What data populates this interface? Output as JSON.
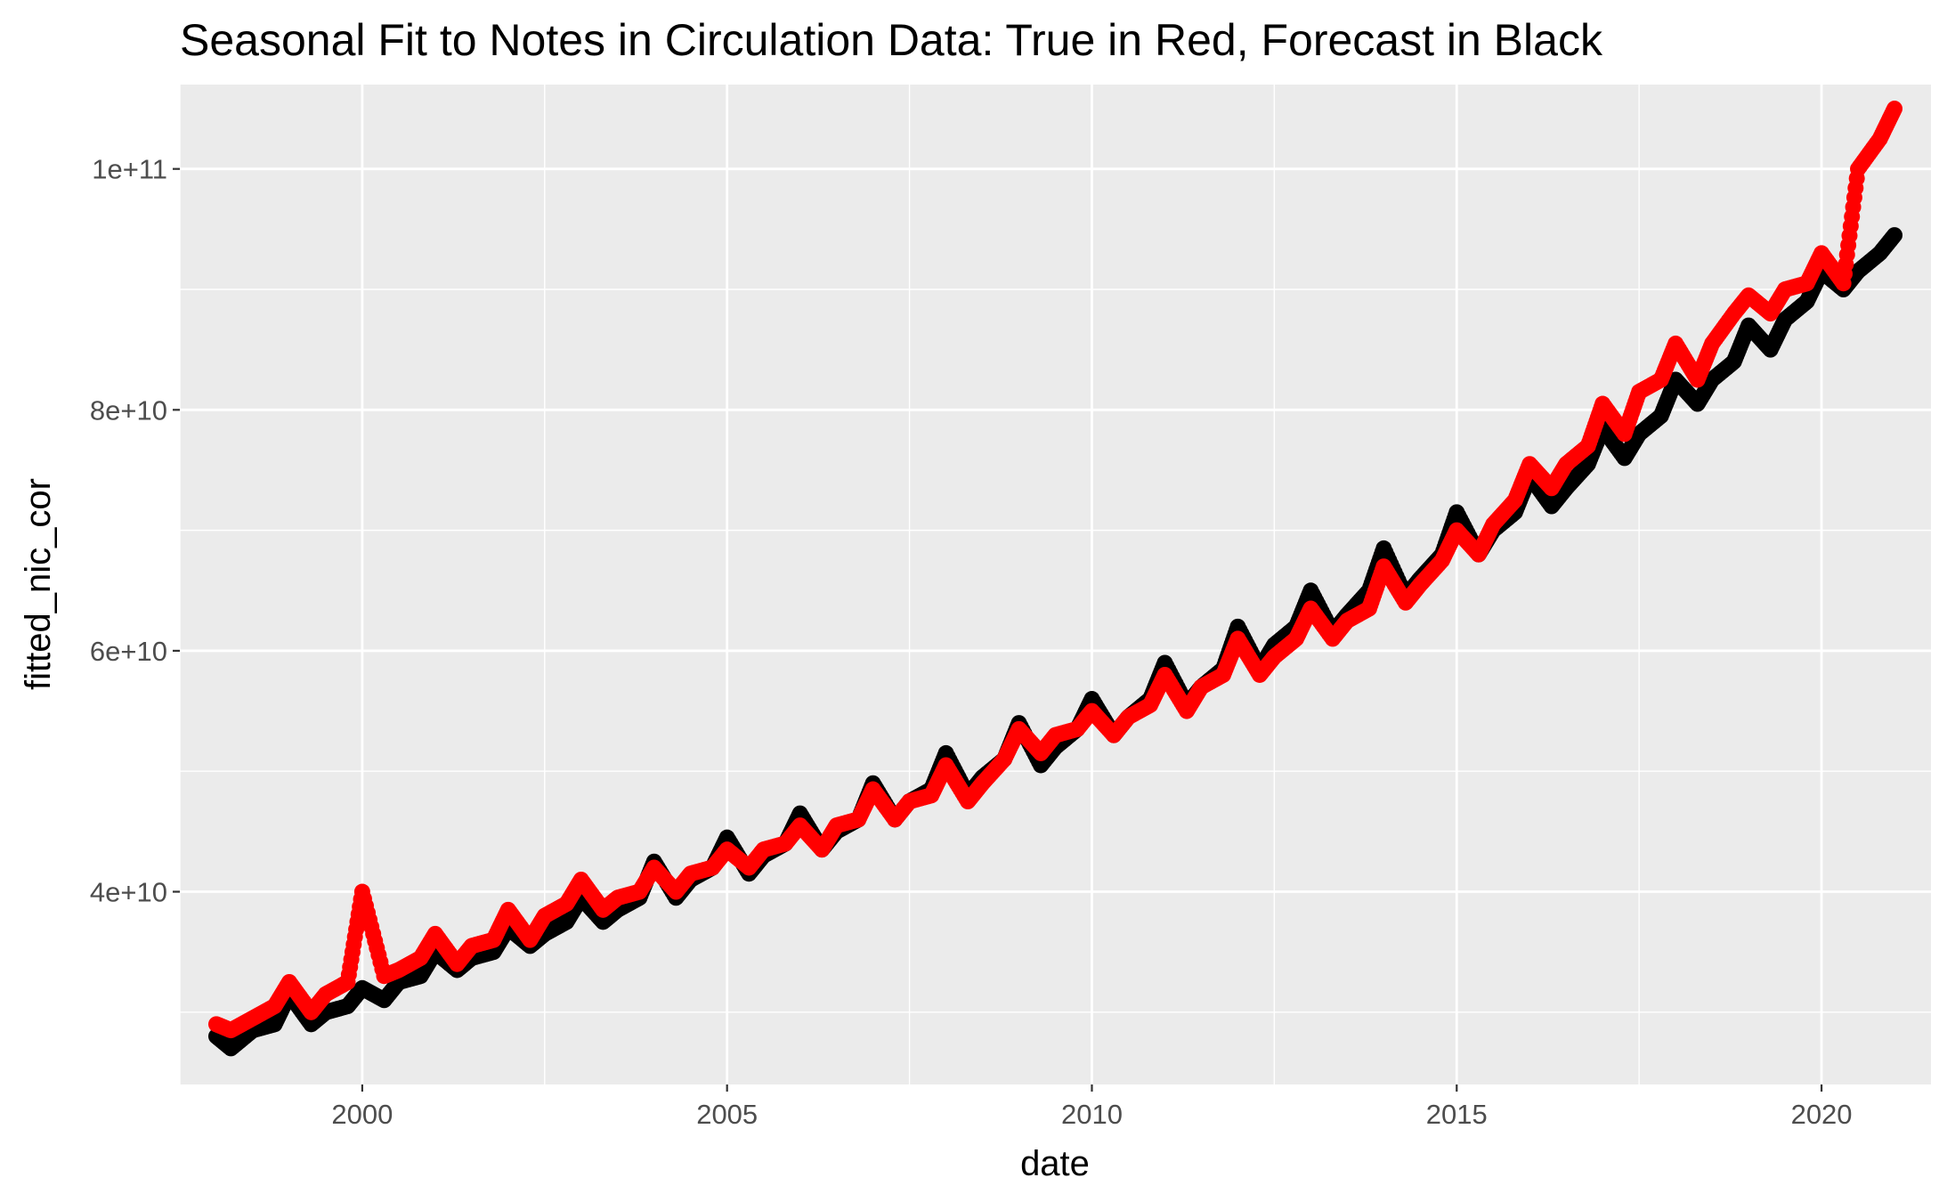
{
  "chart_data": {
    "type": "scatter",
    "title": "Seasonal Fit to Notes in Circulation Data: True in Red, Forecast in Black",
    "xlabel": "date",
    "ylabel": "fitted_nic_cor",
    "xlim": [
      1997.5,
      2021.5
    ],
    "ylim": [
      24000000000,
      107000000000
    ],
    "x_ticks": [
      2000,
      2005,
      2010,
      2015,
      2020
    ],
    "x_tick_labels": [
      "2000",
      "2005",
      "2010",
      "2015",
      "2020"
    ],
    "y_ticks": [
      40000000000,
      60000000000,
      80000000000,
      100000000000
    ],
    "y_tick_labels": [
      "4e+10",
      "6e+10",
      "8e+10",
      "1e+11"
    ],
    "grid": true,
    "background": "#EBEBEB",
    "grid_color": "#FFFFFF",
    "series": [
      {
        "color": "#000000",
        "x": [
          1998.0,
          1998.2,
          1998.5,
          1998.8,
          1999.0,
          1999.3,
          1999.5,
          1999.8,
          2000.0,
          2000.3,
          2000.5,
          2000.8,
          2001.0,
          2001.3,
          2001.5,
          2001.8,
          2002.0,
          2002.3,
          2002.5,
          2002.8,
          2003.0,
          2003.3,
          2003.5,
          2003.8,
          2004.0,
          2004.3,
          2004.5,
          2004.8,
          2005.0,
          2005.3,
          2005.5,
          2005.8,
          2006.0,
          2006.3,
          2006.5,
          2006.8,
          2007.0,
          2007.3,
          2007.5,
          2007.8,
          2008.0,
          2008.3,
          2008.5,
          2008.8,
          2009.0,
          2009.3,
          2009.5,
          2009.8,
          2010.0,
          2010.3,
          2010.5,
          2010.8,
          2011.0,
          2011.3,
          2011.5,
          2011.8,
          2012.0,
          2012.3,
          2012.5,
          2012.8,
          2013.0,
          2013.3,
          2013.5,
          2013.8,
          2014.0,
          2014.3,
          2014.5,
          2014.8,
          2015.0,
          2015.3,
          2015.5,
          2015.8,
          2016.0,
          2016.3,
          2016.5,
          2016.8,
          2017.0,
          2017.3,
          2017.5,
          2017.8,
          2018.0,
          2018.3,
          2018.5,
          2018.8,
          2019.0,
          2019.3,
          2019.5,
          2019.8,
          2020.0,
          2020.3,
          2020.5,
          2020.8,
          2021.0
        ],
        "y": [
          28000000000,
          27000000000,
          28500000000,
          29000000000,
          31500000000,
          29000000000,
          30000000000,
          30500000000,
          32000000000,
          31000000000,
          32500000000,
          33000000000,
          35000000000,
          33500000000,
          34500000000,
          35000000000,
          37000000000,
          35500000000,
          36500000000,
          37500000000,
          39500000000,
          37500000000,
          38500000000,
          39500000000,
          42500000000,
          39500000000,
          41000000000,
          42000000000,
          44500000000,
          41500000000,
          43000000000,
          44000000000,
          46500000000,
          43500000000,
          45000000000,
          46000000000,
          49000000000,
          46000000000,
          47500000000,
          48500000000,
          51500000000,
          48000000000,
          49500000000,
          51000000000,
          54000000000,
          50500000000,
          52000000000,
          53500000000,
          56000000000,
          53000000000,
          54500000000,
          56000000000,
          59000000000,
          55500000000,
          57000000000,
          58500000000,
          62000000000,
          58500000000,
          60500000000,
          62000000000,
          65000000000,
          61500000000,
          63000000000,
          65000000000,
          68500000000,
          64500000000,
          66000000000,
          68000000000,
          71500000000,
          68000000000,
          70000000000,
          71500000000,
          74500000000,
          72000000000,
          73500000000,
          75500000000,
          78500000000,
          76000000000,
          78000000000,
          79500000000,
          82500000000,
          80500000000,
          82500000000,
          84000000000,
          87000000000,
          85000000000,
          87500000000,
          89000000000,
          91500000000,
          90000000000,
          91500000000,
          93000000000,
          94500000000
        ]
      },
      {
        "color": "#FF0000",
        "x": [
          1998.0,
          1998.2,
          1998.5,
          1998.8,
          1999.0,
          1999.3,
          1999.5,
          1999.8,
          2000.0,
          2000.3,
          2000.5,
          2000.8,
          2001.0,
          2001.3,
          2001.5,
          2001.8,
          2002.0,
          2002.3,
          2002.5,
          2002.8,
          2003.0,
          2003.3,
          2003.5,
          2003.8,
          2004.0,
          2004.3,
          2004.5,
          2004.8,
          2005.0,
          2005.3,
          2005.5,
          2005.8,
          2006.0,
          2006.3,
          2006.5,
          2006.8,
          2007.0,
          2007.3,
          2007.5,
          2007.8,
          2008.0,
          2008.3,
          2008.5,
          2008.8,
          2009.0,
          2009.3,
          2009.5,
          2009.8,
          2010.0,
          2010.3,
          2010.5,
          2010.8,
          2011.0,
          2011.3,
          2011.5,
          2011.8,
          2012.0,
          2012.3,
          2012.5,
          2012.8,
          2013.0,
          2013.3,
          2013.5,
          2013.8,
          2014.0,
          2014.3,
          2014.5,
          2014.8,
          2015.0,
          2015.3,
          2015.5,
          2015.8,
          2016.0,
          2016.3,
          2016.5,
          2016.8,
          2017.0,
          2017.3,
          2017.5,
          2017.8,
          2018.0,
          2018.3,
          2018.5,
          2018.8,
          2019.0,
          2019.3,
          2019.5,
          2019.8,
          2020.0,
          2020.3,
          2020.5,
          2020.8,
          2021.0
        ],
        "y": [
          29000000000,
          28500000000,
          29500000000,
          30500000000,
          32500000000,
          30000000000,
          31500000000,
          32500000000,
          40000000000,
          33000000000,
          33500000000,
          34500000000,
          36500000000,
          34000000000,
          35500000000,
          36000000000,
          38500000000,
          36000000000,
          38000000000,
          39000000000,
          41000000000,
          38500000000,
          39500000000,
          40000000000,
          42000000000,
          40000000000,
          41500000000,
          42000000000,
          43500000000,
          42000000000,
          43500000000,
          44000000000,
          45500000000,
          43500000000,
          45500000000,
          46000000000,
          48500000000,
          46000000000,
          47500000000,
          48000000000,
          50500000000,
          47500000000,
          49000000000,
          51000000000,
          53500000000,
          51500000000,
          53000000000,
          53500000000,
          55000000000,
          53000000000,
          54500000000,
          55500000000,
          58000000000,
          55000000000,
          57000000000,
          58000000000,
          61000000000,
          58000000000,
          59500000000,
          61000000000,
          63500000000,
          61000000000,
          62500000000,
          63500000000,
          67000000000,
          64000000000,
          65500000000,
          67500000000,
          70000000000,
          68000000000,
          70500000000,
          72500000000,
          75500000000,
          73500000000,
          75500000000,
          77000000000,
          80500000000,
          78000000000,
          81500000000,
          82500000000,
          85500000000,
          82500000000,
          85500000000,
          88000000000,
          89500000000,
          88000000000,
          90000000000,
          90500000000,
          93000000000,
          90500000000,
          100000000000,
          102500000000,
          105000000000
        ]
      }
    ]
  }
}
